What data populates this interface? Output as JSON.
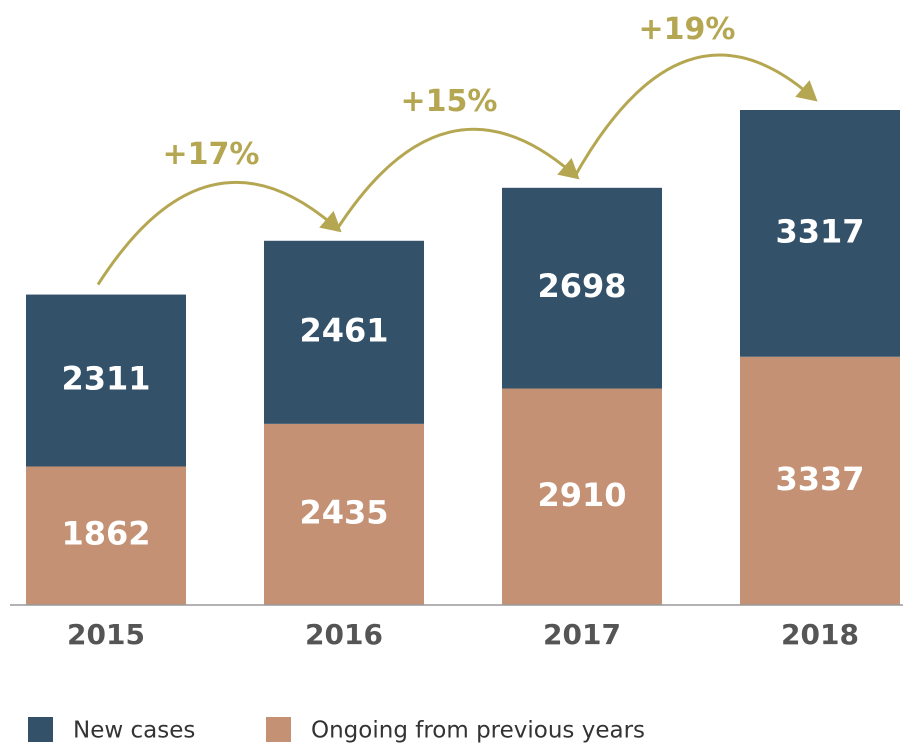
{
  "chart_data": {
    "type": "stacked_bar",
    "categories": [
      "2015",
      "2016",
      "2017",
      "2018"
    ],
    "series": [
      {
        "name": "New cases",
        "color": "#33526a",
        "values": [
          2311,
          2461,
          2698,
          3317
        ]
      },
      {
        "name": "Ongoing from previous years",
        "color": "#c49174",
        "values": [
          1862,
          2435,
          2910,
          3337
        ]
      }
    ],
    "annotations": [
      "+17%",
      "+15%",
      "+19%"
    ],
    "annotation_color": "#b5a752"
  }
}
